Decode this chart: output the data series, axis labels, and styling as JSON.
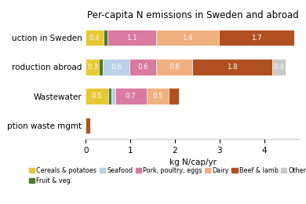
{
  "title": "Per-capita N emissions in Sweden and abroad",
  "xlabel": "kg N/cap/yr",
  "categories": [
    "ption waste mgmt",
    "Wastewater",
    "roduction abroad",
    "uction in Sweden"
  ],
  "segments": [
    {
      "label": "Cereals & potatoes",
      "color": "#e8c835",
      "values": [
        0.0,
        0.5,
        0.3,
        0.4
      ]
    },
    {
      "label": "Fruit & veg.",
      "color": "#4a7c2f",
      "values": [
        0.0,
        0.08,
        0.08,
        0.08
      ]
    },
    {
      "label": "Seafood",
      "color": "#b8d0e8",
      "values": [
        0.0,
        0.08,
        0.6,
        0.0
      ]
    },
    {
      "label": "Pork, poultry, eggs",
      "color": "#d97aa0",
      "values": [
        0.0,
        0.7,
        0.6,
        1.1
      ]
    },
    {
      "label": "Dairy",
      "color": "#f0b080",
      "values": [
        0.0,
        0.5,
        0.8,
        1.4
      ]
    },
    {
      "label": "Beef & lamb",
      "color": "#b05020",
      "values": [
        0.1,
        0.22,
        1.8,
        1.7
      ]
    },
    {
      "label": "Other",
      "color": "#c8c8c8",
      "values": [
        0.0,
        0.0,
        0.3,
        0.0
      ]
    }
  ],
  "text_labels": {
    "uction in Sweden": [
      "0.4",
      "",
      "",
      "1.1",
      "1.4",
      "1.7",
      ""
    ],
    "roduction abroad": [
      "0.3",
      "",
      "0.6",
      "0.6",
      "0.8",
      "1.8",
      "0.3"
    ],
    "Wastewater": [
      "0.5",
      "",
      "",
      "0.7",
      "0.5",
      "",
      ""
    ],
    "ption waste mgmt": [
      "",
      "",
      "",
      "",
      "",
      "",
      ""
    ]
  },
  "xlim": [
    0,
    4.8
  ],
  "xticks": [
    0,
    1,
    2,
    3,
    4
  ],
  "figsize": [
    3.9,
    2.6
  ],
  "dpi": 100,
  "background_color": "#ffffff"
}
